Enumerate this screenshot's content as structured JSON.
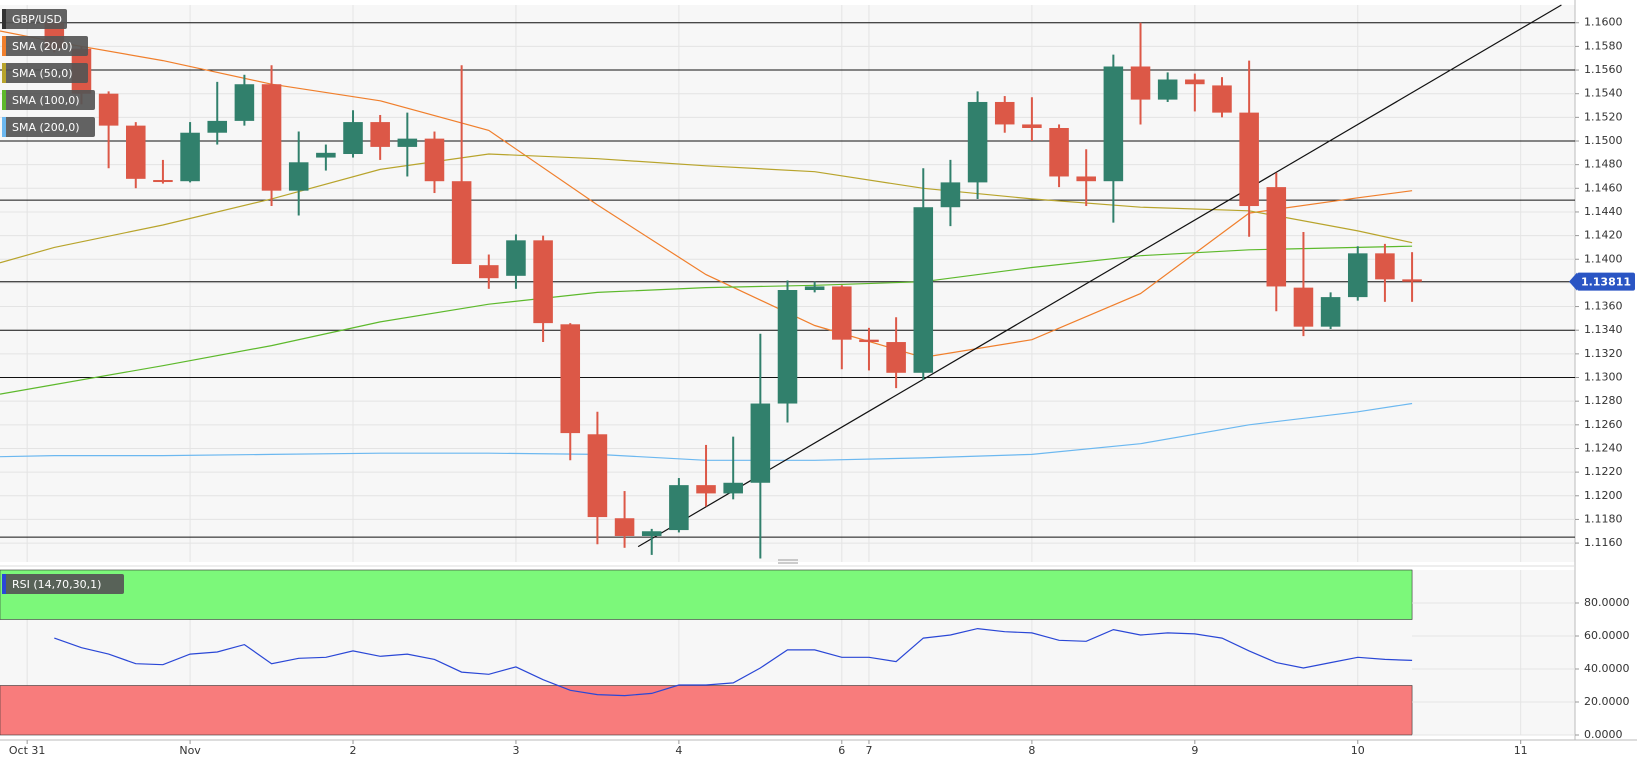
{
  "chart_data": [
    {
      "type": "candlestick",
      "title": "GBP/USD",
      "up_color": "#31806c",
      "down_color": "#dc5847",
      "xlim": [
        -2,
        56
      ],
      "ylim": [
        1.1144,
        1.1615
      ],
      "yticks": [
        {
          "value": 1.116,
          "label": "1.1160"
        },
        {
          "value": 1.118,
          "label": "1.1180"
        },
        {
          "value": 1.12,
          "label": "1.1200"
        },
        {
          "value": 1.122,
          "label": "1.1220"
        },
        {
          "value": 1.124,
          "label": "1.1240"
        },
        {
          "value": 1.126,
          "label": "1.1260"
        },
        {
          "value": 1.128,
          "label": "1.1280"
        },
        {
          "value": 1.13,
          "label": "1.1300"
        },
        {
          "value": 1.132,
          "label": "1.1320"
        },
        {
          "value": 1.134,
          "label": "1.1340"
        },
        {
          "value": 1.136,
          "label": "1.1360"
        },
        {
          "value": 1.138,
          "label": "1.1380"
        },
        {
          "value": 1.14,
          "label": "1.1400"
        },
        {
          "value": 1.142,
          "label": "1.1420"
        },
        {
          "value": 1.144,
          "label": "1.1440"
        },
        {
          "value": 1.146,
          "label": "1.1460"
        },
        {
          "value": 1.148,
          "label": "1.1480"
        },
        {
          "value": 1.15,
          "label": "1.1500"
        },
        {
          "value": 1.152,
          "label": "1.1520"
        },
        {
          "value": 1.154,
          "label": "1.1540"
        },
        {
          "value": 1.156,
          "label": "1.1560"
        },
        {
          "value": 1.158,
          "label": "1.1580"
        },
        {
          "value": 1.16,
          "label": "1.1600"
        }
      ],
      "grid": true,
      "open": [
        1.16,
        1.1578,
        1.154,
        1.1513,
        1.1467,
        1.1466,
        1.1507,
        1.1517,
        1.1548,
        1.1458,
        1.1486,
        1.1489,
        1.1516,
        1.1495,
        1.1502,
        1.1466,
        1.1395,
        1.1386,
        1.1416,
        1.1345,
        1.1252,
        1.1181,
        1.1166,
        1.1171,
        1.1209,
        1.1202,
        1.1211,
        1.1278,
        1.1374,
        1.1377,
        1.1332,
        1.133,
        1.1304,
        1.1444,
        1.1465,
        1.1533,
        1.1514,
        1.1511,
        1.147,
        1.1466,
        1.1563,
        1.1535,
        1.1552,
        1.1547,
        1.1524,
        1.1461,
        1.1376,
        1.1343,
        1.1368,
        1.1405,
        1.1383
      ],
      "high": [
        1.1605,
        1.158,
        1.1542,
        1.1516,
        1.1484,
        1.1516,
        1.155,
        1.1556,
        1.1564,
        1.1508,
        1.1497,
        1.1526,
        1.1522,
        1.1524,
        1.1508,
        1.1564,
        1.1404,
        1.1421,
        1.142,
        1.1346,
        1.1271,
        1.1204,
        1.1172,
        1.1215,
        1.1243,
        1.125,
        1.1337,
        1.1382,
        1.1381,
        1.1378,
        1.1342,
        1.1351,
        1.1477,
        1.1484,
        1.1542,
        1.1538,
        1.1537,
        1.1514,
        1.1493,
        1.1573,
        1.16,
        1.1558,
        1.1557,
        1.1554,
        1.1568,
        1.1473,
        1.1423,
        1.1372,
        1.1411,
        1.1413,
        1.1406
      ],
      "low": [
        1.1575,
        1.1531,
        1.1477,
        1.146,
        1.1464,
        1.1465,
        1.1497,
        1.1513,
        1.1445,
        1.1437,
        1.1475,
        1.1486,
        1.1484,
        1.147,
        1.1456,
        1.1396,
        1.1375,
        1.1375,
        1.133,
        1.123,
        1.1159,
        1.1156,
        1.115,
        1.1169,
        1.1191,
        1.1197,
        1.1147,
        1.1262,
        1.1372,
        1.1307,
        1.1306,
        1.1291,
        1.1298,
        1.1428,
        1.1451,
        1.1507,
        1.15,
        1.1461,
        1.1445,
        1.1431,
        1.1514,
        1.1533,
        1.1525,
        1.152,
        1.1419,
        1.1356,
        1.1335,
        1.1341,
        1.1365,
        1.1364,
        1.1364
      ],
      "close": [
        1.1578,
        1.154,
        1.1513,
        1.1468,
        1.1466,
        1.1507,
        1.1517,
        1.1548,
        1.1458,
        1.1482,
        1.149,
        1.1516,
        1.1495,
        1.1502,
        1.1466,
        1.1396,
        1.1384,
        1.1416,
        1.1346,
        1.1253,
        1.1182,
        1.1166,
        1.117,
        1.1209,
        1.1202,
        1.1211,
        1.1278,
        1.1374,
        1.1377,
        1.1332,
        1.133,
        1.1304,
        1.1444,
        1.1465,
        1.1533,
        1.1514,
        1.1511,
        1.147,
        1.1466,
        1.1563,
        1.1535,
        1.1552,
        1.1548,
        1.1524,
        1.1445,
        1.1377,
        1.1343,
        1.1368,
        1.1405,
        1.1383,
        1.1381
      ],
      "series": [
        {
          "name": "SMA (20,0)",
          "color": "#f07f2c",
          "x": [
            -2,
            0,
            4,
            8,
            12,
            16,
            20,
            24,
            28,
            32,
            36,
            40,
            44,
            48,
            50
          ],
          "values": [
            1.1593,
            1.1584,
            1.1568,
            1.1548,
            1.1534,
            1.1509,
            1.1446,
            1.1387,
            1.1344,
            1.1317,
            1.1332,
            1.1371,
            1.1439,
            1.1452,
            1.1458
          ]
        },
        {
          "name": "SMA (50,0)",
          "color": "#b8a42c",
          "x": [
            -2,
            0,
            4,
            8,
            12,
            16,
            20,
            24,
            28,
            32,
            36,
            40,
            44,
            48,
            50
          ],
          "values": [
            1.1397,
            1.141,
            1.1429,
            1.1451,
            1.1476,
            1.1489,
            1.1485,
            1.1479,
            1.1474,
            1.146,
            1.1451,
            1.1444,
            1.1441,
            1.1424,
            1.1414
          ]
        },
        {
          "name": "SMA (100,0)",
          "color": "#5db92c",
          "x": [
            -2,
            0,
            4,
            8,
            12,
            16,
            20,
            24,
            28,
            32,
            36,
            40,
            44,
            48,
            50
          ],
          "values": [
            1.1286,
            1.1294,
            1.131,
            1.1327,
            1.1347,
            1.1362,
            1.1372,
            1.1376,
            1.1378,
            1.1381,
            1.1393,
            1.1403,
            1.1408,
            1.141,
            1.1411
          ]
        },
        {
          "name": "SMA (200,0)",
          "color": "#6cb8f0",
          "x": [
            -2,
            0,
            4,
            8,
            12,
            16,
            20,
            24,
            28,
            32,
            36,
            40,
            44,
            48,
            50
          ],
          "values": [
            1.1233,
            1.1234,
            1.1234,
            1.1235,
            1.1236,
            1.1236,
            1.1235,
            1.123,
            1.123,
            1.1232,
            1.1235,
            1.1244,
            1.126,
            1.1271,
            1.1278
          ]
        }
      ],
      "hlines": [
        1.16,
        1.156,
        1.15,
        1.145,
        1.1381,
        1.134,
        1.13,
        1.1165
      ],
      "trendline": {
        "x": [
          21.5,
          55.5
        ],
        "y": [
          1.1157,
          1.1615
        ]
      },
      "last_price": 1.13811,
      "last_price_color": "#2a55c4"
    },
    {
      "type": "line",
      "title": "RSI (14,70,30,1)",
      "color": "#2a47d6",
      "overbought": 70,
      "oversold": 30,
      "overbought_color": "#7cf87a",
      "oversold_color": "#f87c7c",
      "xlim": [
        -2,
        56
      ],
      "ylim": [
        0,
        100
      ],
      "yticks": [
        {
          "value": 0,
          "label": "0.0000"
        },
        {
          "value": 20,
          "label": "20.0000"
        },
        {
          "value": 40,
          "label": "40.0000"
        },
        {
          "value": 60,
          "label": "60.0000"
        },
        {
          "value": 80,
          "label": "80.0000"
        }
      ],
      "xticks": [
        {
          "value": -1,
          "label": "Oct 31"
        },
        {
          "value": 5,
          "label": "Nov"
        },
        {
          "value": 11,
          "label": "2"
        },
        {
          "value": 17,
          "label": "3"
        },
        {
          "value": 23,
          "label": "4"
        },
        {
          "value": 29,
          "label": "6"
        },
        {
          "value": 30,
          "label": "7"
        },
        {
          "value": 36,
          "label": "8"
        },
        {
          "value": 42,
          "label": "9"
        },
        {
          "value": 48,
          "label": "10"
        },
        {
          "value": 54,
          "label": "11"
        }
      ],
      "grid": true,
      "values": [
        58.7,
        52.9,
        49.0,
        43.2,
        42.6,
        49.0,
        50.3,
        54.8,
        43.2,
        46.5,
        47.1,
        51.0,
        47.7,
        49.0,
        45.8,
        38.1,
        36.8,
        41.3,
        33.5,
        27.1,
        24.5,
        23.9,
        25.2,
        30.3,
        30.3,
        31.6,
        40.6,
        51.6,
        51.6,
        47.1,
        47.1,
        44.5,
        58.7,
        60.6,
        64.5,
        62.6,
        61.9,
        57.4,
        56.8,
        63.9,
        60.6,
        61.9,
        61.3,
        58.7,
        51.0,
        43.9,
        40.6,
        43.9,
        47.1,
        45.8,
        45.2
      ]
    }
  ]
}
